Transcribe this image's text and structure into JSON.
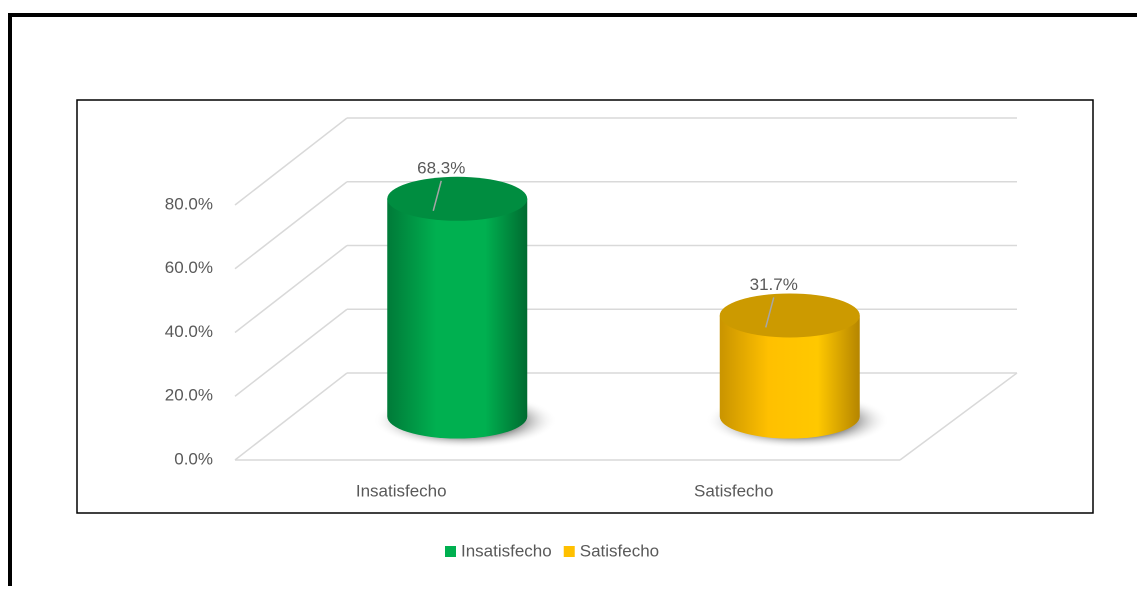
{
  "chart_data": {
    "type": "bar3d",
    "categories": [
      "Insatisfecho",
      "Satisfecho"
    ],
    "values": [
      68.3,
      31.7
    ],
    "value_labels": [
      "68.3%",
      "31.7%"
    ],
    "colors": [
      "#00b050",
      "#ffc000"
    ],
    "ylim": [
      0,
      80
    ],
    "yticks": [
      {
        "value": 0,
        "label": "0.0%"
      },
      {
        "value": 20,
        "label": "20.0%"
      },
      {
        "value": 40,
        "label": "40.0%"
      },
      {
        "value": 60,
        "label": "60.0%"
      },
      {
        "value": 80,
        "label": "80.0%"
      }
    ],
    "grid": true,
    "legend": "bottom"
  }
}
